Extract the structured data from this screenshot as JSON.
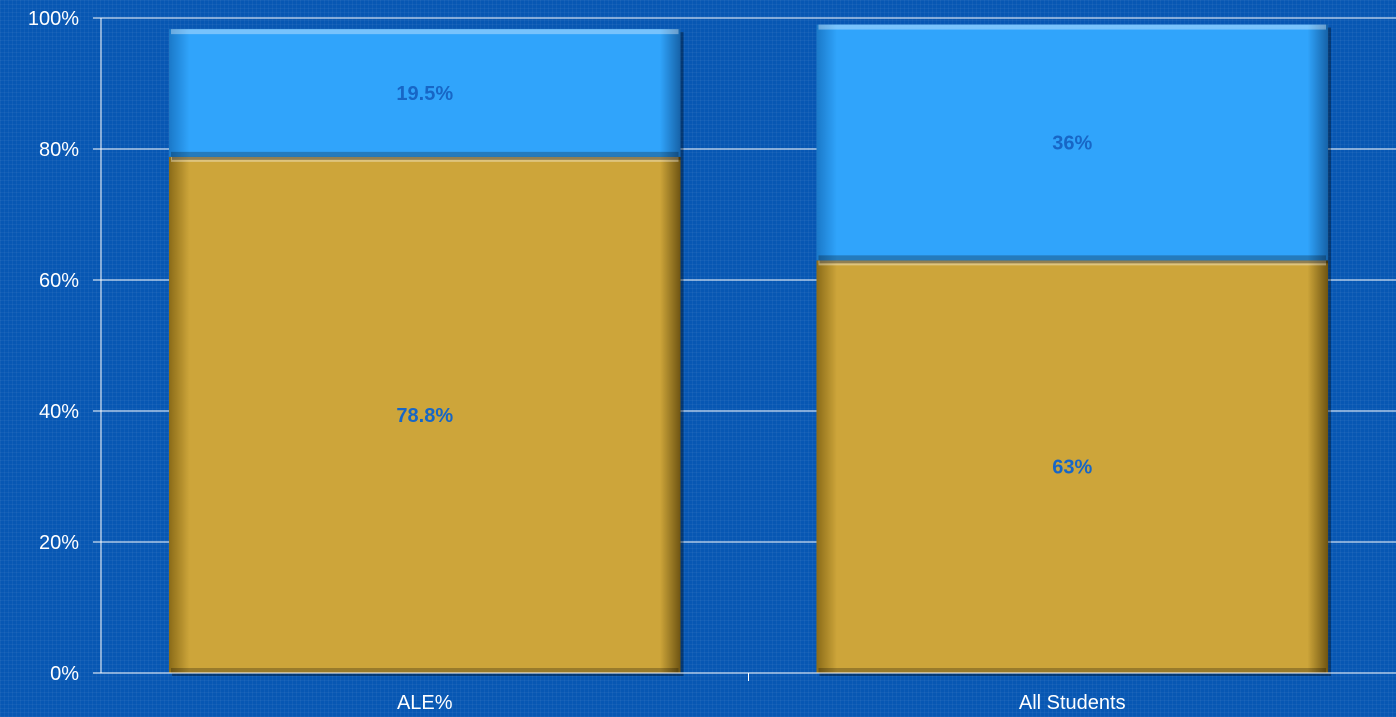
{
  "chart_data": {
    "type": "bar",
    "stacked": true,
    "categories": [
      "ALE%",
      "All Students"
    ],
    "series": [
      {
        "values": [
          78.8,
          63
        ],
        "labels": [
          "78.8%",
          "63%"
        ],
        "color": "#cda53a"
      },
      {
        "values": [
          19.5,
          36
        ],
        "labels": [
          "19.5%",
          "36%"
        ],
        "color": "#30a4fb"
      }
    ],
    "ylim": [
      0,
      100
    ],
    "y_ticks": [
      0,
      20,
      40,
      60,
      80,
      100
    ],
    "y_tick_labels": [
      "0%",
      "20%",
      "40%",
      "60%",
      "80%",
      "100%"
    ],
    "grid": true,
    "legend": "none",
    "colors": {
      "background": "#0757b3",
      "axis": "#ffffff",
      "grid": "#ffffff",
      "data_label": "#1766c6"
    }
  }
}
